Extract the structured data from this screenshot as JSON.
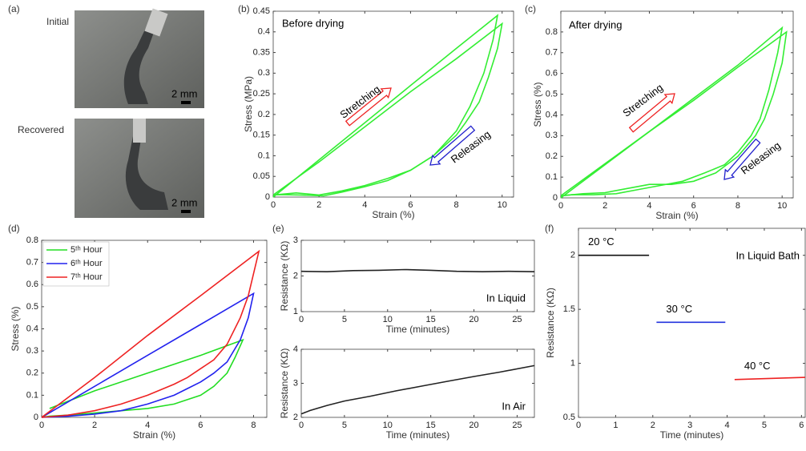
{
  "figure": {
    "panel_labels": [
      "(a)",
      "(b)",
      "(c)",
      "(d)",
      "(e)",
      "(f)"
    ],
    "photos": {
      "labels": [
        "Initial",
        "Recovered"
      ],
      "scale_bars": [
        "2 mm",
        "2 mm"
      ]
    }
  },
  "chart_data": [
    {
      "type": "line",
      "title": "Before drying",
      "annotations": [
        "Stretching",
        "Releasing"
      ],
      "x_label": "Strain (%)",
      "y_label": "Stress (MPa)",
      "xlim": [
        0,
        10.5
      ],
      "xticks": [
        0,
        2,
        4,
        6,
        8,
        10
      ],
      "ylim": [
        0,
        0.45
      ],
      "yticks": [
        0,
        0.05,
        0.1,
        0.15,
        0.2,
        0.25,
        0.3,
        0.35,
        0.4,
        0.45
      ],
      "series": [
        {
          "color": "#33ee33",
          "x": [
            0,
            2,
            4,
            6,
            8,
            9.8,
            9.6,
            9.2,
            8.6,
            8,
            7,
            6,
            5,
            4,
            3,
            2.2,
            1.2,
            0.3,
            0
          ],
          "values": [
            0,
            0.09,
            0.18,
            0.27,
            0.36,
            0.44,
            0.38,
            0.3,
            0.22,
            0.16,
            0.1,
            0.065,
            0.04,
            0.025,
            0.012,
            0.003,
            0.005,
            0.006,
            0.005
          ]
        },
        {
          "color": "#33ee33",
          "x": [
            0,
            2,
            4,
            6,
            8,
            10,
            9.8,
            9.4,
            9,
            8.4,
            8,
            7,
            6,
            5,
            4,
            3,
            2,
            1,
            0
          ],
          "values": [
            0.005,
            0.085,
            0.17,
            0.255,
            0.335,
            0.42,
            0.36,
            0.29,
            0.23,
            0.18,
            0.15,
            0.1,
            0.065,
            0.045,
            0.028,
            0.015,
            0.005,
            0.01,
            0.005
          ]
        }
      ]
    },
    {
      "type": "line",
      "title": "After drying",
      "annotations": [
        "Stretching",
        "Releasing"
      ],
      "x_label": "Strain (%)",
      "y_label": "Stress (%)",
      "xlim": [
        0,
        10.5
      ],
      "xticks": [
        0,
        2,
        4,
        6,
        8,
        10
      ],
      "ylim": [
        0,
        0.9
      ],
      "yticks": [
        0,
        0.1,
        0.2,
        0.3,
        0.4,
        0.5,
        0.6,
        0.7,
        0.8
      ],
      "series": [
        {
          "color": "#33ee33",
          "x": [
            0,
            2,
            4,
            6,
            8,
            10,
            9.8,
            9.4,
            9,
            8.6,
            8,
            7.4,
            6.5,
            5.5,
            4.5,
            3.5,
            2.5,
            1.5,
            0.5,
            0
          ],
          "values": [
            0,
            0.16,
            0.32,
            0.48,
            0.64,
            0.82,
            0.7,
            0.52,
            0.38,
            0.3,
            0.22,
            0.16,
            0.12,
            0.08,
            0.06,
            0.04,
            0.02,
            0.015,
            0.015,
            0.01
          ]
        },
        {
          "color": "#33ee33",
          "x": [
            0,
            2,
            4,
            6,
            8,
            10.2,
            10,
            9.6,
            9.2,
            8.8,
            8,
            7,
            6,
            5,
            4,
            3,
            2,
            1,
            0
          ],
          "values": [
            0.01,
            0.165,
            0.32,
            0.47,
            0.63,
            0.8,
            0.65,
            0.5,
            0.38,
            0.3,
            0.2,
            0.12,
            0.08,
            0.065,
            0.065,
            0.045,
            0.025,
            0.02,
            0.01
          ]
        }
      ]
    },
    {
      "type": "line",
      "x_label": "Strain (%)",
      "y_label": "Stress (%)",
      "xlim": [
        0,
        8.5
      ],
      "xticks": [
        0,
        2,
        4,
        6,
        8
      ],
      "ylim": [
        0,
        0.8
      ],
      "yticks": [
        0,
        0.1,
        0.2,
        0.3,
        0.4,
        0.5,
        0.6,
        0.7,
        0.8
      ],
      "series": [
        {
          "name": "5ᵗʰ Hour",
          "color": "#22dd22",
          "x": [
            0.3,
            2,
            4,
            6,
            7.6,
            7.3,
            7,
            6.5,
            6,
            5.5,
            5,
            4,
            3,
            2,
            1,
            0.3,
            0
          ],
          "values": [
            0.04,
            0.12,
            0.2,
            0.28,
            0.35,
            0.27,
            0.2,
            0.14,
            0.1,
            0.08,
            0.06,
            0.04,
            0.03,
            0.02,
            0.01,
            0.005,
            0
          ]
        },
        {
          "name": "6ᵗʰ Hour",
          "color": "#2222ee",
          "x": [
            0,
            2,
            4,
            6,
            8,
            7.8,
            7.5,
            7,
            6.5,
            6,
            5.5,
            5,
            4,
            3,
            2,
            1,
            0
          ],
          "values": [
            0,
            0.14,
            0.28,
            0.42,
            0.56,
            0.45,
            0.35,
            0.25,
            0.2,
            0.16,
            0.13,
            0.1,
            0.06,
            0.03,
            0.015,
            0.005,
            0
          ]
        },
        {
          "name": "7ᵗʰ Hour",
          "color": "#ee2222",
          "x": [
            0,
            2,
            4,
            6,
            8.2,
            8,
            7.8,
            7.5,
            7,
            6.5,
            6,
            5.5,
            5,
            4,
            3,
            2,
            1,
            0
          ],
          "values": [
            0,
            0.18,
            0.37,
            0.55,
            0.75,
            0.65,
            0.55,
            0.45,
            0.33,
            0.26,
            0.22,
            0.18,
            0.15,
            0.1,
            0.06,
            0.03,
            0.01,
            0
          ]
        }
      ]
    },
    {
      "type": "line",
      "title": "In Liquid",
      "x_label": "Time (minutes)",
      "y_label": "Resistance (KΩ)",
      "xlim": [
        0,
        27
      ],
      "xticks": [
        0,
        5,
        10,
        15,
        20,
        25
      ],
      "ylim": [
        1,
        3
      ],
      "yticks": [
        1,
        2,
        3
      ],
      "series": [
        {
          "color": "#222222",
          "x": [
            0,
            3,
            6,
            9,
            12,
            15,
            18,
            21,
            24,
            27
          ],
          "values": [
            2.13,
            2.12,
            2.15,
            2.16,
            2.18,
            2.16,
            2.13,
            2.12,
            2.13,
            2.12
          ]
        }
      ]
    },
    {
      "type": "line",
      "title": "In Air",
      "x_label": "Time (minutes)",
      "y_label": "Resistance (KΩ)",
      "xlim": [
        0,
        27
      ],
      "xticks": [
        0,
        5,
        10,
        15,
        20,
        25
      ],
      "ylim": [
        2,
        4
      ],
      "yticks": [
        2,
        3,
        4
      ],
      "series": [
        {
          "color": "#222222",
          "x": [
            0,
            1,
            3,
            5,
            8,
            11,
            14,
            17,
            20,
            23,
            27
          ],
          "values": [
            2.1,
            2.2,
            2.35,
            2.48,
            2.62,
            2.78,
            2.92,
            3.06,
            3.2,
            3.33,
            3.52
          ]
        }
      ]
    },
    {
      "type": "line",
      "title": "In Liquid Bath",
      "x_label": "Time (minutes)",
      "y_label": "Resistance (KΩ)",
      "xlim": [
        0,
        6.1
      ],
      "xticks": [
        0,
        1,
        2,
        3,
        4,
        5,
        6
      ],
      "ylim": [
        0.5,
        2.25
      ],
      "yticks": [
        0.5,
        1,
        1.5,
        2
      ],
      "series": [
        {
          "name": "20 °C",
          "color": "#111111",
          "x": [
            0,
            1.9
          ],
          "values": [
            2.0,
            2.0
          ]
        },
        {
          "name": "30 °C",
          "color": "#2233dd",
          "x": [
            2.1,
            3.95
          ],
          "values": [
            1.38,
            1.38
          ]
        },
        {
          "name": "40 °C",
          "color": "#ee2222",
          "x": [
            4.2,
            6.1
          ],
          "values": [
            0.85,
            0.87
          ]
        }
      ]
    }
  ]
}
